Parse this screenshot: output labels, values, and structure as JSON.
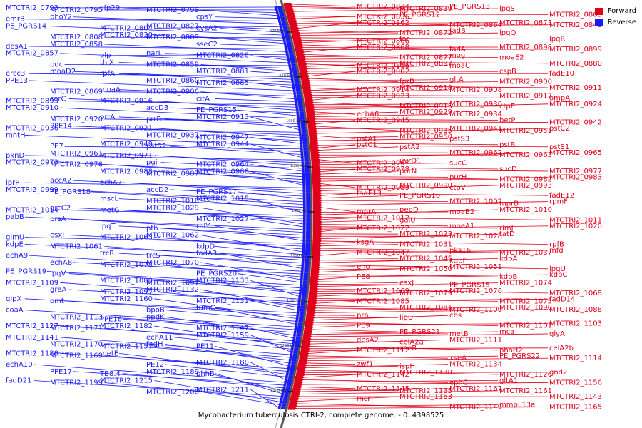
{
  "legend": {
    "forward_label": "Forward",
    "reverse_label": "Reverse"
  },
  "colors": {
    "forward": "#e0001b",
    "reverse": "#1a1aff",
    "backbone": "#555555"
  },
  "caption": "Mycobacterium tuberculosis CTRI-2, complete genome. - 0..4398525",
  "ticks": [
    "900 kbp",
    "950 kbp",
    "1000 kbp",
    "1050 kbp",
    "1100 kbp",
    "1150 kbp",
    "1200 kbp",
    "1250 kbp",
    "1300 kbp"
  ],
  "reverse_labels": [
    "MTCTRI2_0793",
    "MTCTRI2_0795",
    "cfp29",
    "MTCTRI2_0798",
    "cpsY",
    "emrB",
    "phoY2",
    "MTCTRI2_0804",
    "MTCTRI2_0827",
    "cysA2",
    "PE_PGRS14",
    "MTCTRI2_0808",
    "MTCTRI2_0830",
    "MTCTRI2_0809",
    "sseC2",
    "desA1",
    "MTCTRI2_0858",
    "plp",
    "narL",
    "MTCTRI2_0828",
    "MTCTRI2_0857",
    "pdc",
    "thiX",
    "MTCTRI2_0859",
    "MTCTRI2_0881",
    "ercc3",
    "moaD2",
    "rpfA",
    "MTCTRI2_0860",
    "MTCTRI2_0885",
    "PPE13",
    "MTCTRI2_0869",
    "moaA",
    "MTCTRI2_0906",
    "citA",
    "MTCTRI2_0893",
    "serC",
    "MTCTRI2_0916",
    "accD3",
    "PE_PGRS15",
    "MTCTRI2_0910",
    "MTCTRI2_0920",
    "prrA",
    "prrB",
    "MTCTRI2_0913",
    "MTCTRI2_0936",
    "PPE14",
    "MTCTRI2_0921",
    "MTCTRI2_0937",
    "MTCTRI2_0947",
    "mntH",
    "PE7",
    "MTCTRI2_0949",
    "pstS2",
    "MTCTRI2_0944",
    "pknD",
    "MTCTRI2_0961",
    "MTCTRI2_0971",
    "pgi",
    "MTCTRI2_0964",
    "MTCTRI2_0973",
    "MTCTRI2_0976",
    "MTCTRI2_0988",
    "MTCTRI2_0987",
    "MTCTRI2_0986",
    "lprP",
    "accA2",
    "echA7",
    "accD2",
    "PE_PGRS17",
    "MTCTRI2_0999",
    "PE_PGRS18",
    "mscL",
    "MTCTRI2_1016",
    "MTCTRI2_1015",
    "MTCTRI2_1014",
    "grcC2",
    "metG",
    "MTCTRI2_1029",
    "MTCTRI2_1027",
    "pabB",
    "prsA",
    "lpqT",
    "pth",
    "rplY",
    "glmU",
    "esxI",
    "MTCTRI2_1063",
    "MTCTRI2_1062",
    "kdpD",
    "kdpE",
    "MTCTRI2_1061",
    "trcR",
    "trcS",
    "fadA3",
    "echA9",
    "echA8",
    "MTCTRI2_1078",
    "MTCTRI2_1070",
    "PE_PGRS20",
    "PE_PGRS19",
    "lpqV",
    "MTCTRI2_1080",
    "MTCTRI2_1091",
    "MTCTRI2_1133",
    "MTCTRI2_1109",
    "greA",
    "MTCTRI2_1097",
    "MTCTRI2_1132",
    "MTCTRI2_1131",
    "glpX",
    "omt",
    "MTCTRI2_1160",
    "bpoB",
    "fumC",
    "coaA",
    "MTCTRI2_1113",
    "PPE16",
    "ppdK",
    "MTCTRI2_1147",
    "MTCTRI2_1127",
    "MTCTRI2_1171",
    "MTCTRI2_1182",
    "echA11",
    "MTCTRI2_1159",
    "MTCTRI2_1141",
    "MTCTRI2_1170",
    "MTCTRI2_1157",
    "fadH",
    "PE11",
    "MTCTRI2_1188",
    "MTCTRI2_1169",
    "metE",
    "PE12",
    "MTCTRI2_1180",
    "echA10",
    "PPE17",
    "TB8.4",
    "MTCTRI2_1189",
    "phhB",
    "fadD21",
    "MTCTRI2_1199",
    "MTCTRI2_1215",
    "MTCTRI2_1208",
    "MTCTRI2_1211"
  ],
  "forward_labels": [
    "MTCTRI2_0824",
    "MTCTRI2_0839",
    "PE_PGRS13",
    "lpqS",
    "MTCTRI2_0865",
    "MTCTRI2_0836",
    "PE_PGRS12",
    "MTCTRI2_0864",
    "MTCTRI2_0873",
    "MTCTRI2_0848",
    "MTCTRI2_0862",
    "MTCTRI2_0872",
    "fadB",
    "lpqQ",
    "lpqR",
    "MTCTRI2_0866",
    "far",
    "fadA",
    "MTCTRI2_0898",
    "MTCTRI2_0899",
    "MTCTRI2_0868",
    "MTCTRI2_0877",
    "mog",
    "moaE2",
    "MTCTRI2_0880",
    "MTCTRI2_0886",
    "MTCTRI2_0897",
    "moaC",
    "cspB",
    "fadE10",
    "MTCTRI2_0902",
    "fprB",
    "gltA",
    "MTCTRI2_0900",
    "MTCTRI2_0911",
    "MTCTRI2_0914",
    "MTCTRI2_0918",
    "MTCTRI2_0908",
    "MTCTRI2_0917",
    "ompA",
    "MTCTRI2_0923",
    "MTCTRI2_0915",
    "MTCTRI2_0930",
    "ctpE",
    "MTCTRI2_0924",
    "echA6",
    "MTCTRI2_0929",
    "MTCTRI2_0934",
    "betP",
    "MTCTRI2_0942",
    "MTCTRI2_0945",
    "MTCTRI2_0935",
    "MTCTRI2_0941",
    "MTCTRI2_0951",
    "pstC2",
    "pstA1",
    "MTCTRI2_0950",
    "pstS3",
    "pstB",
    "pstS1",
    "pstC1",
    "pstA2",
    "MTCTRI2_0962",
    "MTCTRI2_0963",
    "MTCTRI2_0965",
    "MTCTRI2_0967",
    "uvrD1",
    "sucC",
    "sucD",
    "MTCTRI2_0977",
    "MTCTRI2_0978",
    "purN",
    "purH",
    "MTCTRI2_0982",
    "MTCTRI2_0983",
    "MTCTRI2_0989",
    "MTCTRI2_0990",
    "ctpV",
    "MTCTRI2_0993",
    "fadE12",
    "fadE13",
    "PE_PGRS16",
    "MTCTRI2_1002",
    "mprB",
    "rpmF",
    "mprA",
    "pepD",
    "moaB2",
    "MTCTRI2_1010",
    "MTCTRI2_1011",
    "MTCTRI2_1012",
    "galU",
    "moeA1",
    "rimJ",
    "MTCTRI2_1020",
    "MTCTRI2_1022",
    "MTCTRI2_1023",
    "MTCTRI2_1028",
    "tatD",
    "rpfB",
    "ksgA",
    "MTCTRI2_1031",
    "pks16",
    "MTCTRI2_1037",
    "mfd",
    "MTCTRI2_1047",
    "MTCTRI2_1045",
    "kdpF",
    "kdpA",
    "lpqU",
    "eno",
    "MTCTRI2_1050",
    "MTCTRI2_1051",
    "kdpB",
    "kdpC",
    "PE8",
    "esxJ",
    "PE_PGRS15",
    "MTCTRI2_1074",
    "MTCTRI2_1068",
    "MTCTRI2_1069",
    "MTCTRI2_1079",
    "MTCTRI2_1076",
    "MTCTRI2_1075",
    "fadD14",
    "MTCTRI2_1085",
    "MTCTRI2_1081",
    "MTCTRI2_1100",
    "MTCTRI2_1090",
    "MTCTRI2_1088",
    "pra",
    "lipU",
    "cbs",
    "MTCTRI2_1101",
    "MTCTRI2_1103",
    "PE9",
    "PE_PGRS21",
    "metB",
    "mca",
    "glyA",
    "desA2",
    "celA2a",
    "MTCTRI2_1111",
    "phoH2",
    "celA2b",
    "MTCTRI2_1112",
    "xseB",
    "xseA",
    "PE_PGRS22",
    "MTCTRI2_1114",
    "zwf1",
    "ispH",
    "MTCTRI2_1134",
    "MTCTRI2_1126",
    "gnd2",
    "MTCTRI2_1142",
    "MTCTRI2_1130",
    "ephC",
    "gltA1",
    "MTCTRI2_1156",
    "MTCTRI2_1145",
    "MTCTRI2_1135",
    "MTCTRI2_1167",
    "MTCTRI2_1161",
    "MTCTRI2_1143",
    "mcr",
    "MTCTRI2_1163",
    "MTCTRI2_1149",
    "mmpL13a",
    "MTCTRI2_1165"
  ]
}
